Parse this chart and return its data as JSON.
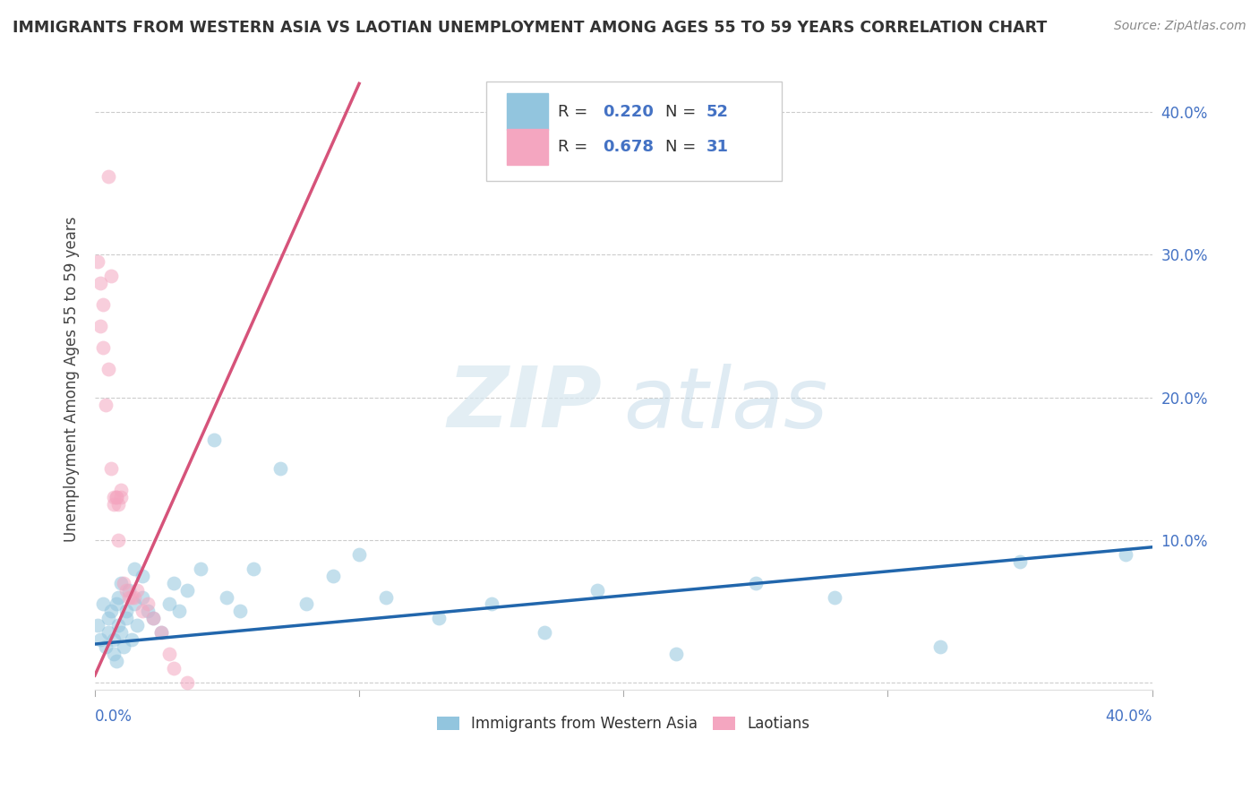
{
  "title": "IMMIGRANTS FROM WESTERN ASIA VS LAOTIAN UNEMPLOYMENT AMONG AGES 55 TO 59 YEARS CORRELATION CHART",
  "source": "Source: ZipAtlas.com",
  "ylabel": "Unemployment Among Ages 55 to 59 years",
  "ytick_values": [
    0.0,
    0.1,
    0.2,
    0.3,
    0.4
  ],
  "xlim": [
    0.0,
    0.4
  ],
  "ylim": [
    -0.005,
    0.43
  ],
  "watermark_zip": "ZIP",
  "watermark_atlas": "atlas",
  "legend_blue_label": "Immigrants from Western Asia",
  "legend_pink_label": "Laotians",
  "blue_color": "#92c5de",
  "pink_color": "#f4a6c0",
  "blue_line_color": "#2166ac",
  "pink_line_color": "#d6537a",
  "title_color": "#333333",
  "source_color": "#888888",
  "tick_color": "#4472c4",
  "r_n_color": "#4472c4",
  "grid_color": "#cccccc",
  "background_color": "#ffffff",
  "blue_scatter_x": [
    0.001,
    0.002,
    0.003,
    0.004,
    0.005,
    0.005,
    0.006,
    0.007,
    0.007,
    0.008,
    0.008,
    0.009,
    0.009,
    0.01,
    0.01,
    0.011,
    0.012,
    0.012,
    0.013,
    0.014,
    0.015,
    0.015,
    0.016,
    0.018,
    0.018,
    0.02,
    0.022,
    0.025,
    0.028,
    0.03,
    0.032,
    0.035,
    0.04,
    0.045,
    0.05,
    0.055,
    0.06,
    0.07,
    0.08,
    0.09,
    0.1,
    0.11,
    0.13,
    0.15,
    0.17,
    0.19,
    0.22,
    0.25,
    0.28,
    0.32,
    0.35,
    0.39
  ],
  "blue_scatter_y": [
    0.04,
    0.03,
    0.055,
    0.025,
    0.045,
    0.035,
    0.05,
    0.03,
    0.02,
    0.055,
    0.015,
    0.04,
    0.06,
    0.035,
    0.07,
    0.025,
    0.05,
    0.045,
    0.065,
    0.03,
    0.055,
    0.08,
    0.04,
    0.06,
    0.075,
    0.05,
    0.045,
    0.035,
    0.055,
    0.07,
    0.05,
    0.065,
    0.08,
    0.17,
    0.06,
    0.05,
    0.08,
    0.15,
    0.055,
    0.075,
    0.09,
    0.06,
    0.045,
    0.055,
    0.035,
    0.065,
    0.02,
    0.07,
    0.06,
    0.025,
    0.085,
    0.09
  ],
  "pink_scatter_x": [
    0.001,
    0.002,
    0.002,
    0.003,
    0.003,
    0.004,
    0.005,
    0.005,
    0.006,
    0.006,
    0.007,
    0.007,
    0.008,
    0.008,
    0.009,
    0.009,
    0.01,
    0.01,
    0.011,
    0.012,
    0.013,
    0.014,
    0.015,
    0.016,
    0.018,
    0.02,
    0.022,
    0.025,
    0.028,
    0.03,
    0.035
  ],
  "pink_scatter_y": [
    0.295,
    0.28,
    0.25,
    0.265,
    0.235,
    0.195,
    0.355,
    0.22,
    0.285,
    0.15,
    0.125,
    0.13,
    0.13,
    0.13,
    0.125,
    0.1,
    0.135,
    0.13,
    0.07,
    0.065,
    0.06,
    0.06,
    0.06,
    0.065,
    0.05,
    0.055,
    0.045,
    0.035,
    0.02,
    0.01,
    0.0
  ],
  "blue_trend_x": [
    0.0,
    0.4
  ],
  "blue_trend_y": [
    0.027,
    0.095
  ],
  "pink_trend_x": [
    0.0,
    0.1
  ],
  "pink_trend_y": [
    0.005,
    0.42
  ]
}
